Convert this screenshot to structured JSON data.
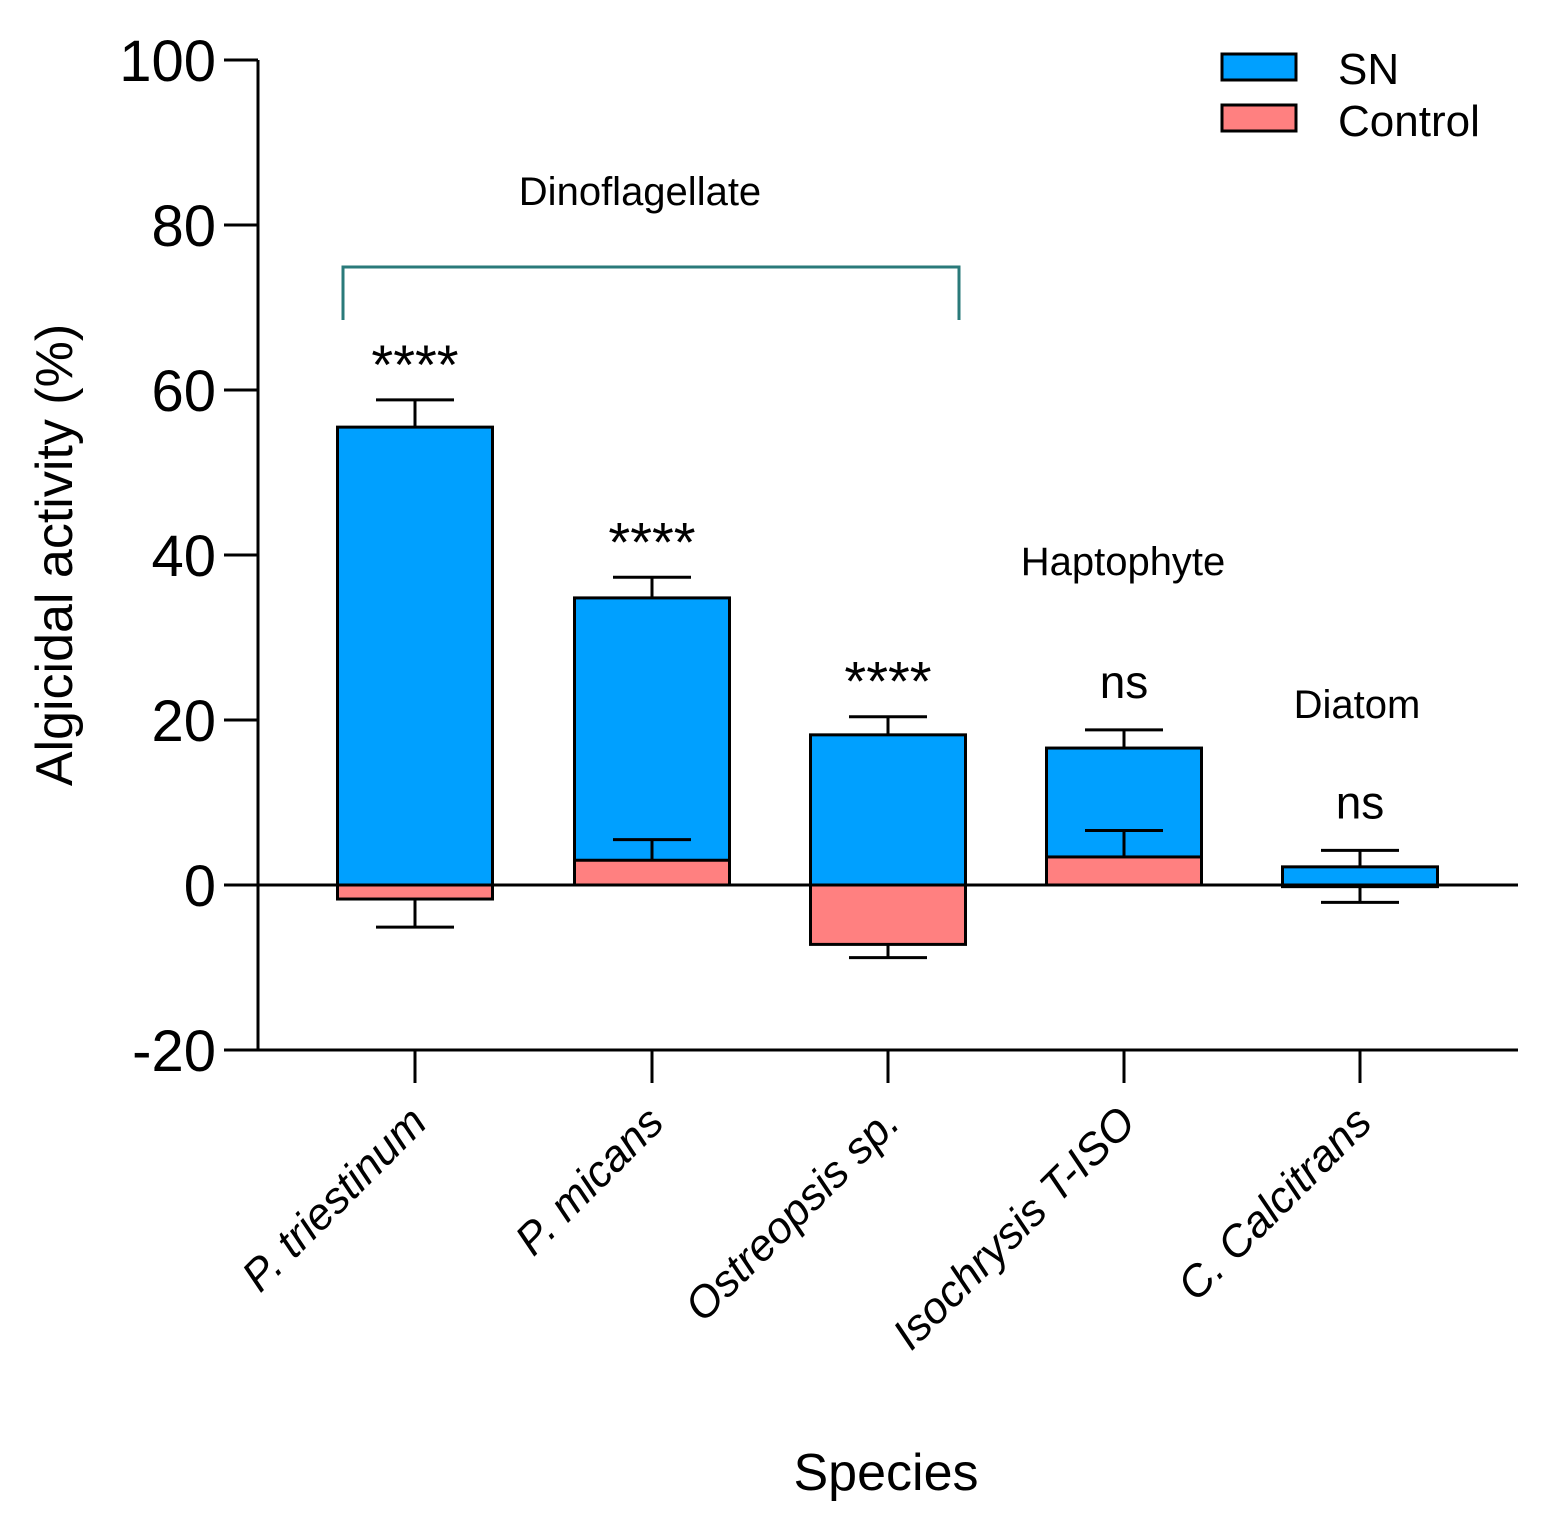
{
  "chart_data": {
    "type": "bar",
    "title": "",
    "xlabel": "Species",
    "ylabel": "Algicidal activity (%)",
    "ylim": [
      -20,
      100
    ],
    "yticks": [
      -20,
      0,
      20,
      40,
      60,
      80,
      100
    ],
    "categories": [
      "P. triestinum",
      "P. micans",
      "Ostreopsis sp.",
      "Isochrysis T-ISO",
      "C. Calcitrans"
    ],
    "series": [
      {
        "name": "SN",
        "color": "#00a0ff",
        "values": [
          55.5,
          34.8,
          18.2,
          16.6,
          2.2
        ],
        "errors": [
          3.3,
          2.5,
          2.2,
          2.2,
          2.0
        ]
      },
      {
        "name": "Control",
        "color": "#ff8080",
        "values": [
          -1.7,
          3.0,
          -7.2,
          3.4,
          -0.2
        ],
        "errors": [
          3.4,
          2.5,
          1.6,
          3.2,
          1.9
        ]
      }
    ],
    "significance": [
      "****",
      "****",
      "****",
      "ns",
      "ns"
    ],
    "groups": [
      {
        "label": "Dinoflagellate",
        "bracket": true
      },
      {
        "label": "Haptophyte",
        "bracket": false
      },
      {
        "label": "Diatom",
        "bracket": false
      }
    ],
    "legend_position": "top-right",
    "colors": {
      "axis": "#000000",
      "bracket": "#2a7a7a"
    }
  }
}
